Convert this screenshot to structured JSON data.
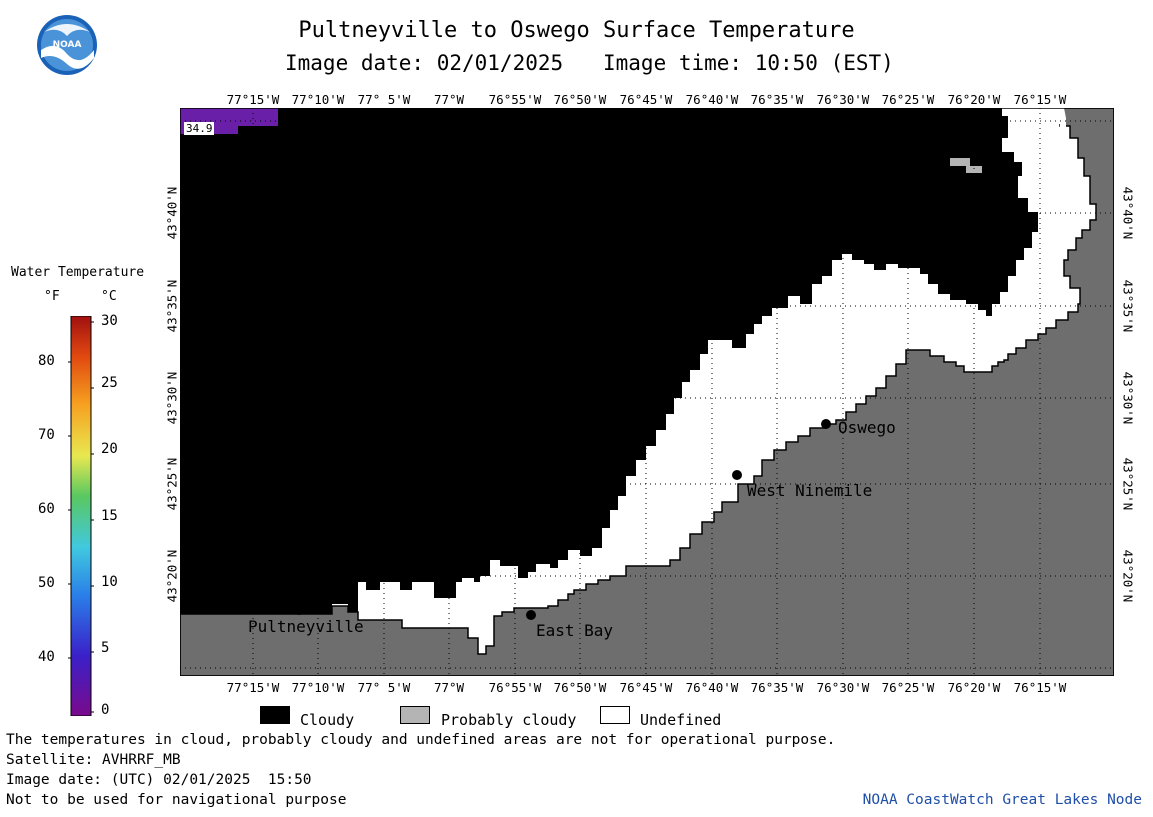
{
  "header": {
    "title": "Pultneyville to Oswego Surface Temperature",
    "subtitle_date": "Image date: 02/01/2025",
    "subtitle_time": "Image time: 10:50 (EST)",
    "logo_text": "NOAA"
  },
  "map": {
    "lon_labels": [
      "77°15'W",
      "77°10'W",
      "77° 5'W",
      "77°W",
      "76°55'W",
      "76°50'W",
      "76°45'W",
      "76°40'W",
      "76°35'W",
      "76°30'W",
      "76°25'W",
      "76°20'W",
      "76°15'W"
    ],
    "lat_labels": [
      "43°40'N",
      "43°35'N",
      "43°30'N",
      "43°25'N",
      "43°20'N"
    ],
    "cities": [
      {
        "name": "Oswego"
      },
      {
        "name": "West Ninemile"
      },
      {
        "name": "Pultneyville"
      },
      {
        "name": "East Bay"
      }
    ],
    "sample_value": "34.9",
    "colors": {
      "land": "#6e6e6e",
      "cloud": "#000000",
      "probably_cloudy": "#b4b4b4",
      "undefined": "#ffffff",
      "cold_water": "#6a1fa8"
    }
  },
  "colorbar": {
    "title": "Water Temperature",
    "unit_f": "°F",
    "unit_c": "°C",
    "f_ticks": [
      "80",
      "70",
      "60",
      "50",
      "40"
    ],
    "c_ticks": [
      "30",
      "25",
      "20",
      "15",
      "10",
      "5",
      "0"
    ]
  },
  "legend": {
    "items": [
      {
        "label": "Cloudy",
        "color": "#000000"
      },
      {
        "label": "Probably cloudy",
        "color": "#b4b4b4"
      },
      {
        "label": "Undefined",
        "color": "#ffffff"
      }
    ]
  },
  "footer": {
    "line1": "The temperatures in cloud, probably cloudy and undefined areas are not for operational purpose.",
    "line2": "Satellite: AVHRRF_MB",
    "line3": "Image date: (UTC) 02/01/2025  15:50",
    "line4": "Not to be used for navigational purpose",
    "credit": "NOAA CoastWatch Great Lakes Node"
  }
}
